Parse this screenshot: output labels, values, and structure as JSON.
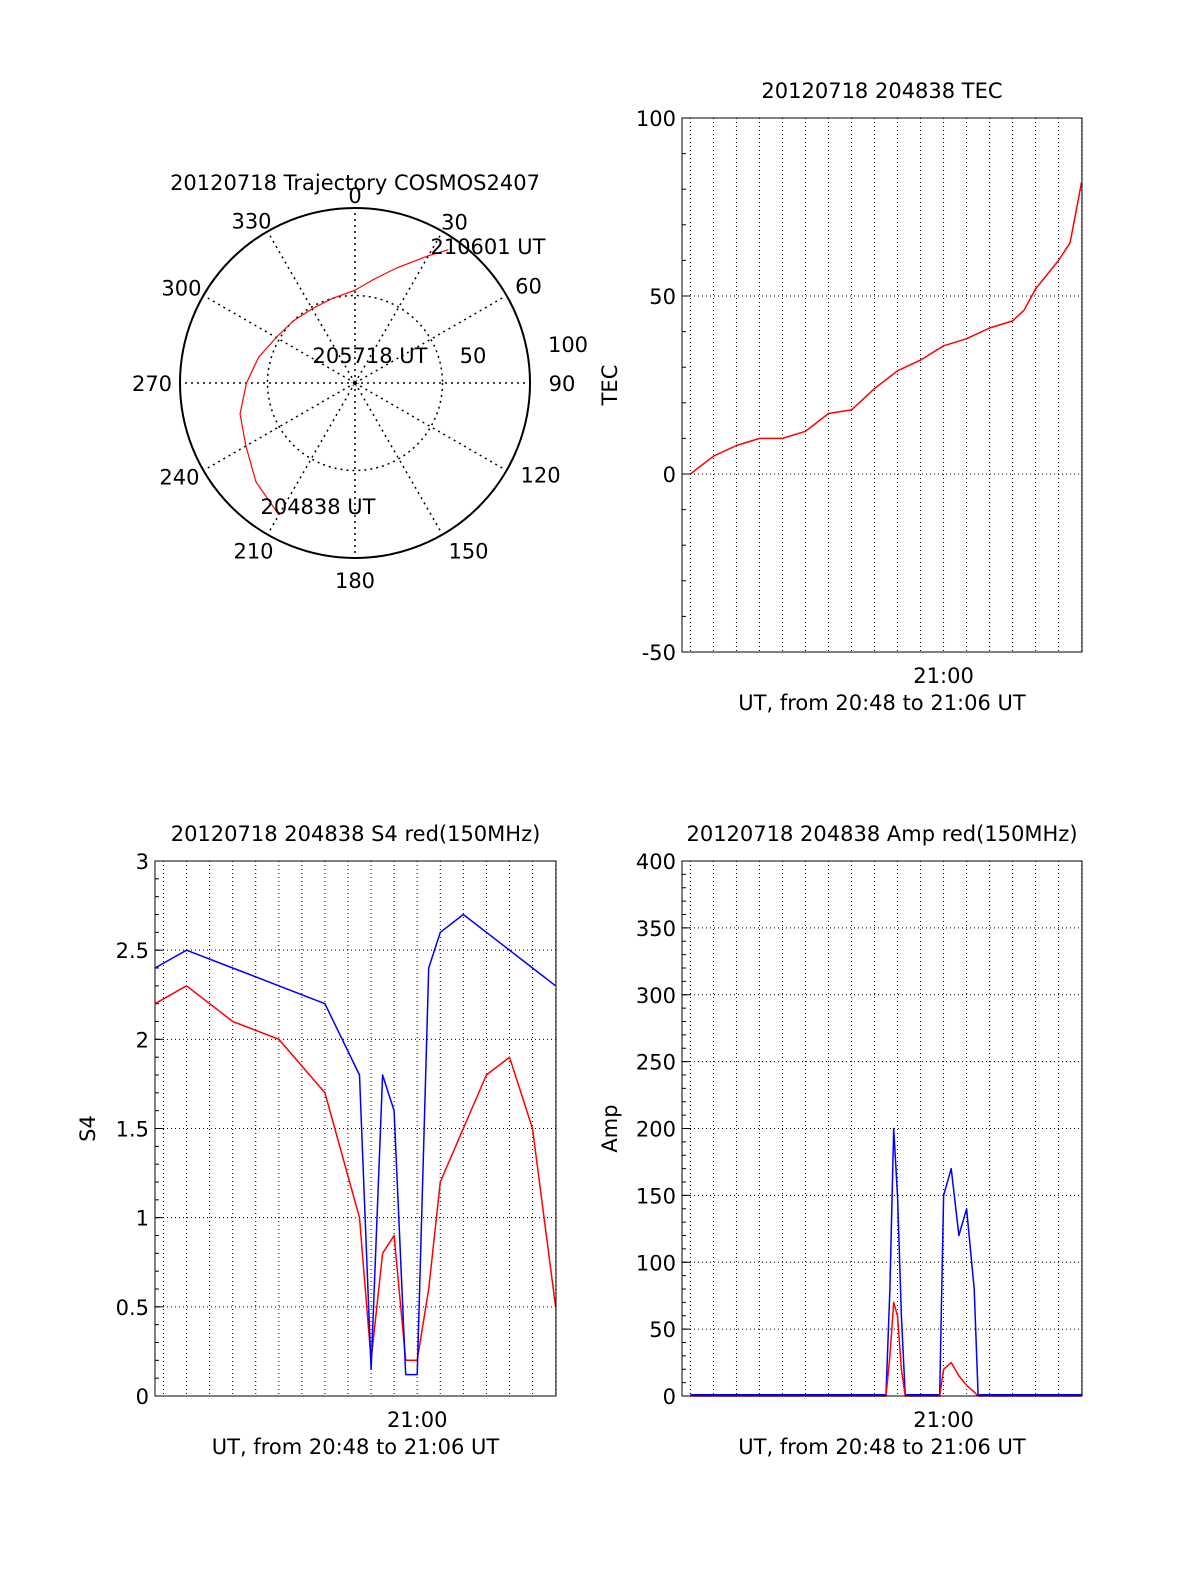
{
  "chart_data": [
    {
      "id": "trajectory",
      "type": "polar",
      "title": "20120718 Trajectory COSMOS2407",
      "azimuth_labels": [
        "0",
        "30",
        "60",
        "90",
        "120",
        "150",
        "180",
        "210",
        "240",
        "270",
        "300",
        "330"
      ],
      "radial_labels": [
        "50",
        "100"
      ],
      "rlim": [
        0,
        100
      ],
      "trajectory_color": "#ff0000",
      "trajectory": {
        "az": [
          210,
          225,
          240,
          255,
          270,
          285,
          300,
          315,
          330,
          345,
          0,
          10,
          20,
          30,
          35
        ],
        "r": [
          87,
          80,
          72,
          68,
          62,
          57,
          52,
          50,
          49,
          50,
          53,
          60,
          70,
          84,
          93
        ]
      },
      "annotations": [
        {
          "text": "210601 UT",
          "az": 38,
          "r": 80
        },
        {
          "text": "205718 UT",
          "az": 330,
          "r": 6
        },
        {
          "text": "204838 UT",
          "az": 205,
          "r": 78
        }
      ]
    },
    {
      "id": "tec",
      "type": "line",
      "title": "20120718 204838 TEC",
      "ylabel": "TEC",
      "xlabel": "UT, from 20:48 to 21:06 UT",
      "x_range": [
        "20:48:38",
        "21:06:01"
      ],
      "ylim": [
        -50,
        100
      ],
      "yticks": [
        "-50",
        "0",
        "50",
        "100"
      ],
      "xtick_labels": [
        {
          "time": "21:00",
          "label": "21:00"
        }
      ],
      "grid": true,
      "series": [
        {
          "color": "#ff0000",
          "x": [
            "20:49:00",
            "20:50:00",
            "20:51:00",
            "20:52:00",
            "20:53:00",
            "20:54:00",
            "20:55:00",
            "20:56:00",
            "20:57:00",
            "20:58:00",
            "20:59:00",
            "21:00:00",
            "21:01:00",
            "21:02:00",
            "21:03:00",
            "21:03:30",
            "21:04:00",
            "21:05:00",
            "21:05:30",
            "21:06:00"
          ],
          "values": [
            0,
            5,
            8,
            10,
            10,
            12,
            17,
            18,
            24,
            29,
            32,
            36,
            38,
            41,
            43,
            46,
            52,
            60,
            65,
            82
          ]
        }
      ]
    },
    {
      "id": "s4",
      "type": "line",
      "title": "20120718 204838 S4 red(150MHz)",
      "ylabel": "S4",
      "xlabel": "UT, from 20:48 to 21:06 UT",
      "x_range": [
        "20:48:38",
        "21:06:01"
      ],
      "ylim": [
        0,
        3
      ],
      "yticks": [
        "0",
        "0.5",
        "1",
        "1.5",
        "2",
        "2.5",
        "3"
      ],
      "xtick_labels": [
        {
          "time": "21:00",
          "label": "21:00"
        }
      ],
      "grid": true,
      "series": [
        {
          "color": "#ff0000",
          "x": [
            "20:48:38",
            "20:50:00",
            "20:52:00",
            "20:54:00",
            "20:56:00",
            "20:57:30",
            "20:58:00",
            "20:58:30",
            "20:59:00",
            "20:59:30",
            "21:00:00",
            "21:00:30",
            "21:01:00",
            "21:02:00",
            "21:03:00",
            "21:04:00",
            "21:05:00",
            "21:06:00"
          ],
          "values": [
            2.2,
            2.3,
            2.1,
            2.0,
            1.7,
            1.0,
            0.2,
            0.8,
            0.9,
            0.2,
            0.2,
            0.6,
            1.2,
            1.5,
            1.8,
            1.9,
            1.5,
            0.5
          ]
        },
        {
          "color": "#0000ff",
          "x": [
            "20:48:38",
            "20:50:00",
            "20:52:00",
            "20:54:00",
            "20:56:00",
            "20:57:30",
            "20:58:00",
            "20:58:30",
            "20:59:00",
            "20:59:30",
            "21:00:00",
            "21:00:30",
            "21:01:00",
            "21:02:00",
            "21:03:00",
            "21:04:00",
            "21:05:00",
            "21:06:00"
          ],
          "values": [
            2.4,
            2.5,
            2.4,
            2.3,
            2.2,
            1.8,
            0.15,
            1.8,
            1.6,
            0.12,
            0.12,
            2.4,
            2.6,
            2.7,
            2.6,
            2.5,
            2.4,
            2.3
          ]
        }
      ]
    },
    {
      "id": "amp",
      "type": "line",
      "title": "20120718 204838 Amp red(150MHz)",
      "ylabel": "Amp",
      "xlabel": "UT, from 20:48 to 21:06 UT",
      "x_range": [
        "20:48:38",
        "21:06:01"
      ],
      "ylim": [
        0,
        400
      ],
      "yticks": [
        "0",
        "50",
        "100",
        "150",
        "200",
        "250",
        "300",
        "350",
        "400"
      ],
      "xtick_labels": [
        {
          "time": "21:00",
          "label": "21:00"
        }
      ],
      "grid": true,
      "series": [
        {
          "color": "#0000ff",
          "x": [
            "20:49:00",
            "20:57:30",
            "20:57:40",
            "20:57:50",
            "20:58:00",
            "20:58:10",
            "20:58:20",
            "20:59:50",
            "21:00:00",
            "21:00:20",
            "21:00:40",
            "21:01:00",
            "21:01:20",
            "21:01:30",
            "21:06:00"
          ],
          "values": [
            1,
            1,
            80,
            200,
            150,
            60,
            1,
            1,
            150,
            170,
            120,
            140,
            80,
            1,
            1
          ]
        },
        {
          "color": "#ff0000",
          "x": [
            "20:49:00",
            "20:57:30",
            "20:57:40",
            "20:57:50",
            "20:58:00",
            "20:58:10",
            "20:58:20",
            "20:59:50",
            "21:00:00",
            "21:00:20",
            "21:00:40",
            "21:01:00",
            "21:01:20",
            "21:01:30",
            "21:06:00"
          ],
          "values": [
            0,
            0,
            30,
            70,
            60,
            20,
            0,
            0,
            20,
            25,
            15,
            8,
            3,
            0,
            0
          ]
        }
      ]
    }
  ]
}
